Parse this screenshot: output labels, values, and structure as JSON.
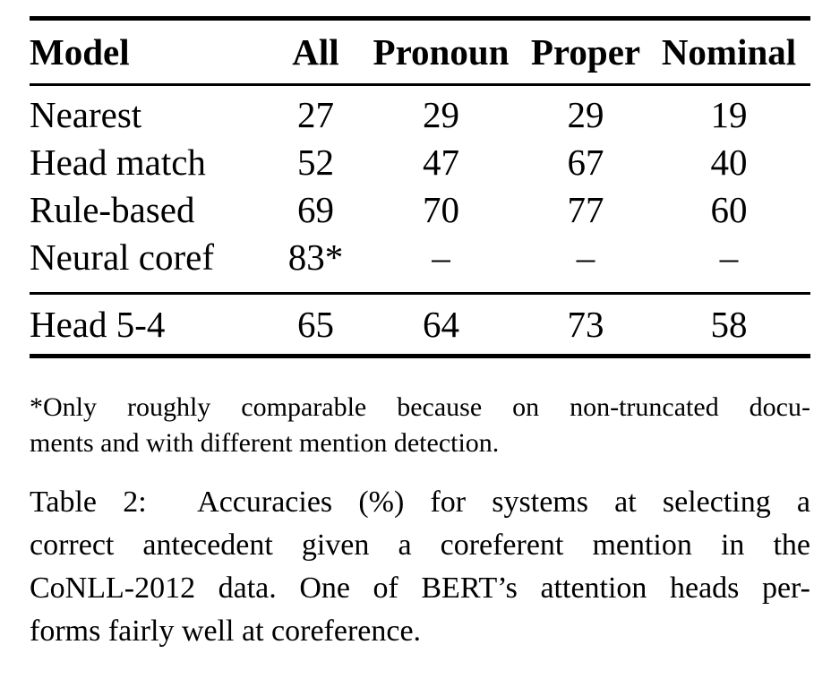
{
  "page": {
    "background_color": "#ffffff",
    "text_color": "#000000",
    "rule_color": "#000000"
  },
  "table": {
    "columns": [
      "Model",
      "All",
      "Pronoun",
      "Proper",
      "Nominal"
    ],
    "rows": [
      {
        "model": "Nearest",
        "all": "27",
        "pronoun": "29",
        "proper": "29",
        "nominal": "19"
      },
      {
        "model": "Head match",
        "all": "52",
        "pronoun": "47",
        "proper": "67",
        "nominal": "40"
      },
      {
        "model": "Rule-based",
        "all": "69",
        "pronoun": "70",
        "proper": "77",
        "nominal": "60"
      },
      {
        "model": "Neural coref",
        "all": "83*",
        "pronoun": "–",
        "proper": "–",
        "nominal": "–"
      }
    ],
    "summary_row": {
      "model": "Head 5-4",
      "all": "65",
      "pronoun": "64",
      "proper": "73",
      "nominal": "58"
    }
  },
  "footnote": {
    "lines": [
      "*Only roughly comparable because on non-truncated docu-",
      "ments and with different mention detection."
    ]
  },
  "caption": {
    "label": "Table 2:",
    "lines": [
      "Table 2:  Accuracies (%) for systems at selecting a",
      "correct antecedent given a coreferent mention in the",
      "CoNLL-2012 data. One of BERT’s attention heads per-",
      "forms fairly well at coreference."
    ]
  }
}
